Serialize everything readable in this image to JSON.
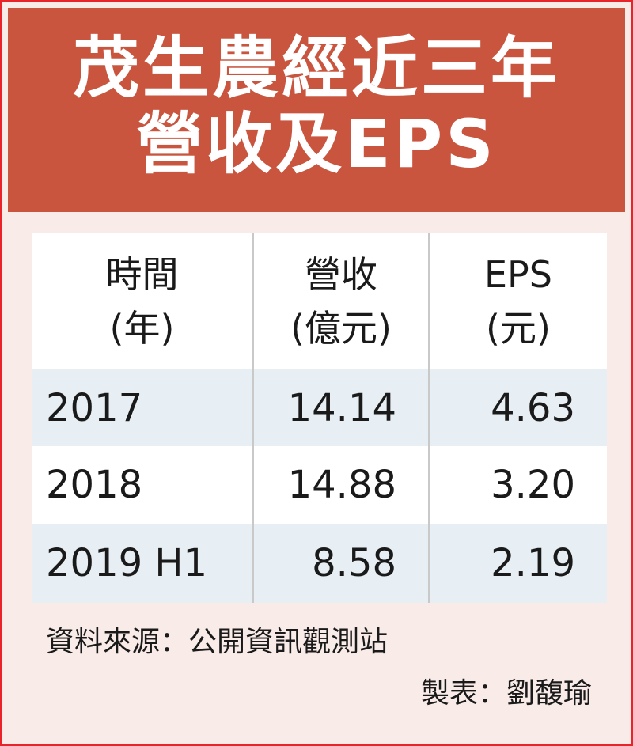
{
  "header": {
    "title": [
      "茂生農經近三年",
      "營收及EPS"
    ]
  },
  "table": {
    "columns": [
      [
        "時間",
        "(年)"
      ],
      [
        "營收",
        "(億元)"
      ],
      [
        "EPS",
        "(元)"
      ]
    ],
    "rows": [
      [
        "2017",
        "14.14",
        "4.63"
      ],
      [
        "2018",
        "14.88",
        "3.20"
      ],
      [
        "2019 H1",
        "8.58",
        "2.19"
      ]
    ]
  },
  "footer": {
    "source": "資料來源：公開資訊觀測站",
    "credit": "製表：劉馥瑜"
  }
}
